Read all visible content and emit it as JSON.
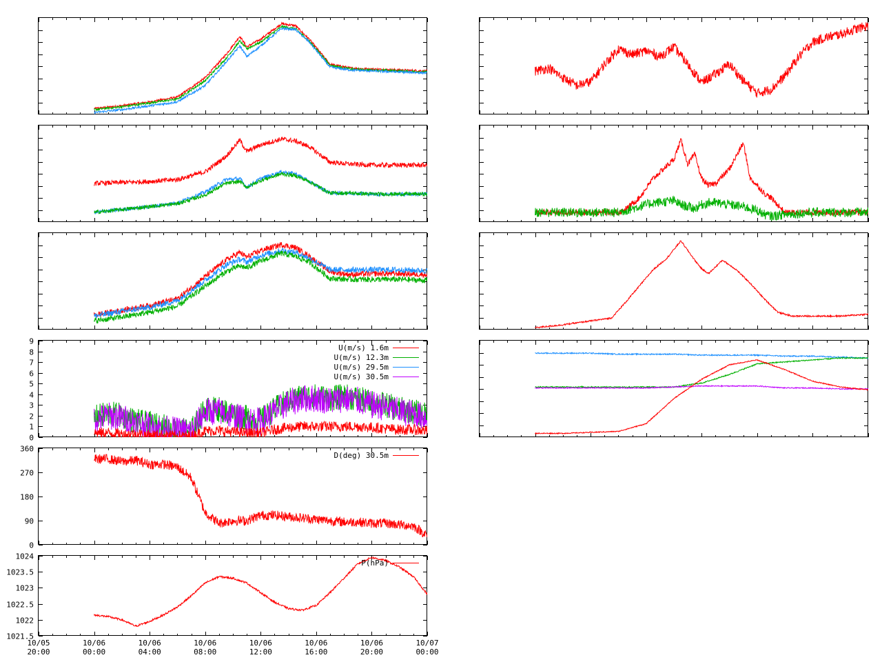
{
  "time_axis": {
    "ticks": [
      {
        "date": "10/05",
        "time": "20:00"
      },
      {
        "date": "10/06",
        "time": "00:00"
      },
      {
        "date": "10/06",
        "time": "04:00"
      },
      {
        "date": "10/06",
        "time": "08:00"
      },
      {
        "date": "10/06",
        "time": "12:00"
      },
      {
        "date": "10/06",
        "time": "16:00"
      },
      {
        "date": "10/06",
        "time": "20:00"
      },
      {
        "date": "10/07",
        "time": "00:00"
      }
    ]
  },
  "colors": {
    "red": "#ff0000",
    "green": "#00b000",
    "blue": "#1e90ff",
    "purple": "#c000ff"
  },
  "chart_data": [
    {
      "type": "line",
      "panel": "left-1",
      "yticks": [],
      "legend": [],
      "x_hours": [
        0,
        2,
        4,
        6,
        8,
        9.5,
        10.5,
        11,
        12,
        13.5,
        14.5,
        15.5,
        17,
        18.5,
        20,
        22,
        24
      ],
      "ylim": [
        0,
        100
      ],
      "series": [
        {
          "color": "red",
          "values": [
            6,
            9,
            13,
            18,
            38,
            62,
            81,
            70,
            78,
            94,
            92,
            78,
            52,
            48,
            47,
            46,
            45
          ],
          "noise": 1.2
        },
        {
          "color": "green",
          "values": [
            5,
            8,
            12,
            16,
            35,
            58,
            76,
            68,
            75,
            91,
            89,
            76,
            51,
            47,
            46,
            45,
            44
          ],
          "noise": 1.2
        },
        {
          "color": "blue",
          "values": [
            2,
            5,
            9,
            13,
            30,
            54,
            71,
            60,
            71,
            89,
            88,
            75,
            49,
            46,
            45,
            44,
            43
          ],
          "noise": 1.2
        }
      ]
    },
    {
      "type": "line",
      "panel": "left-2",
      "yticks": [],
      "legend": [],
      "x_hours": [
        0,
        2,
        4,
        6,
        8,
        9.5,
        10.5,
        11,
        12,
        13.5,
        14.5,
        15.5,
        17,
        18.5,
        20,
        22,
        24
      ],
      "ylim": [
        0,
        100
      ],
      "series": [
        {
          "color": "red",
          "values": [
            40,
            41,
            42,
            44,
            52,
            68,
            85,
            73,
            80,
            86,
            84,
            78,
            62,
            60,
            59,
            59,
            59
          ],
          "noise": 2.5
        },
        {
          "color": "blue",
          "values": [
            10,
            13,
            16,
            20,
            31,
            44,
            45,
            36,
            45,
            52,
            50,
            42,
            30,
            30,
            29,
            29,
            29
          ],
          "noise": 2
        },
        {
          "color": "green",
          "values": [
            10,
            13,
            16,
            19,
            28,
            40,
            42,
            36,
            43,
            50,
            48,
            42,
            30,
            30,
            29,
            29,
            29
          ],
          "noise": 2
        }
      ]
    },
    {
      "type": "line",
      "panel": "left-3",
      "yticks": [],
      "legend": [],
      "x_hours": [
        0,
        2,
        4,
        6,
        8,
        9.5,
        10.5,
        11,
        12,
        13.5,
        14.5,
        15.5,
        17,
        18.5,
        20,
        22,
        24
      ],
      "ylim": [
        0,
        100
      ],
      "series": [
        {
          "color": "red",
          "values": [
            15,
            20,
            25,
            32,
            55,
            72,
            80,
            75,
            82,
            88,
            85,
            76,
            60,
            57,
            58,
            58,
            57
          ],
          "noise": 3
        },
        {
          "color": "blue",
          "values": [
            14,
            19,
            23,
            30,
            51,
            67,
            73,
            70,
            77,
            82,
            80,
            74,
            62,
            62,
            62,
            62,
            61
          ],
          "noise": 3
        },
        {
          "color": "green",
          "values": [
            9,
            13,
            18,
            24,
            45,
            60,
            66,
            64,
            71,
            79,
            76,
            70,
            53,
            52,
            52,
            52,
            51
          ],
          "noise": 3
        }
      ]
    },
    {
      "type": "line",
      "panel": "left-4",
      "ylim": [
        0,
        9
      ],
      "yticks": [
        "0",
        "1",
        "2",
        "3",
        "4",
        "5",
        "6",
        "7",
        "8",
        "9"
      ],
      "legend": [
        {
          "label": "U(m/s)  1.6m",
          "color": "red"
        },
        {
          "label": "U(m/s) 12.3m",
          "color": "green"
        },
        {
          "label": "U(m/s) 29.5m",
          "color": "blue"
        },
        {
          "label": "U(m/s) 30.5m",
          "color": "purple"
        }
      ],
      "x_hours": [
        0,
        1,
        2,
        3,
        4,
        5,
        6,
        7,
        8,
        9,
        10,
        11,
        12,
        13,
        14,
        15,
        16,
        17,
        18,
        19,
        20,
        21,
        22,
        23,
        24
      ],
      "series": [
        {
          "color": "green",
          "values": [
            1.8,
            2.2,
            2.0,
            1.5,
            1.2,
            1.0,
            0.6,
            0.6,
            2.6,
            2.6,
            2.2,
            1.8,
            1.6,
            2.6,
            3.4,
            3.8,
            3.8,
            3.6,
            3.8,
            3.6,
            3.2,
            3.0,
            2.6,
            2.4,
            2.0
          ],
          "noise": 1.2
        },
        {
          "color": "purple",
          "values": [
            1.6,
            2.0,
            1.8,
            1.4,
            1.0,
            0.8,
            0.6,
            0.5,
            2.4,
            2.4,
            2.0,
            1.6,
            1.5,
            2.4,
            3.2,
            3.6,
            3.6,
            3.4,
            3.6,
            3.4,
            3.0,
            2.8,
            2.4,
            2.2,
            1.8
          ],
          "noise": 1.3
        },
        {
          "color": "red",
          "values": [
            0.4,
            0.4,
            0.3,
            0.3,
            0.2,
            0.2,
            0.1,
            0.1,
            0.6,
            0.6,
            0.5,
            0.4,
            0.4,
            0.7,
            0.9,
            1.0,
            1.0,
            1.0,
            1.0,
            1.0,
            0.9,
            0.8,
            0.7,
            0.7,
            0.6
          ],
          "noise": 0.5
        }
      ]
    },
    {
      "type": "line",
      "panel": "left-5",
      "ylim": [
        0,
        360
      ],
      "yticks": [
        "0",
        "90",
        "180",
        "270",
        "360"
      ],
      "legend": [
        {
          "label": "D(deg)  30.5m",
          "color": "red"
        }
      ],
      "x_hours": [
        0,
        1,
        2,
        3,
        4,
        5,
        6,
        7,
        8,
        9,
        10,
        11,
        12,
        13,
        14,
        15,
        16,
        17,
        18,
        19,
        20,
        21,
        22,
        23,
        24
      ],
      "series": [
        {
          "color": "red",
          "values": [
            320,
            320,
            310,
            315,
            300,
            300,
            290,
            250,
            120,
            80,
            90,
            90,
            110,
            110,
            105,
            100,
            95,
            90,
            85,
            85,
            80,
            80,
            75,
            70,
            35
          ],
          "noise": 18
        }
      ]
    },
    {
      "type": "line",
      "panel": "left-6",
      "ylim": [
        1021.5,
        1024
      ],
      "yticks": [
        "1021.5",
        "1022",
        "1022.5",
        "1023",
        "1023.5",
        "1024"
      ],
      "legend": [
        {
          "label": "P(hPa)",
          "color": "red"
        }
      ],
      "x_hours": [
        0,
        1,
        2,
        3,
        4,
        5,
        6,
        7,
        8,
        9,
        10,
        11,
        12,
        13,
        14,
        15,
        16,
        17,
        18,
        19,
        20,
        21,
        22,
        23,
        24
      ],
      "series": [
        {
          "color": "red",
          "values": [
            1022.15,
            1022.1,
            1022.0,
            1021.8,
            1021.95,
            1022.15,
            1022.4,
            1022.75,
            1023.15,
            1023.35,
            1023.3,
            1023.15,
            1022.85,
            1022.55,
            1022.35,
            1022.3,
            1022.45,
            1022.85,
            1023.3,
            1023.75,
            1023.95,
            1023.85,
            1023.65,
            1023.35,
            1022.8
          ],
          "noise": 0.03
        }
      ]
    },
    {
      "type": "line",
      "panel": "right-1",
      "yticks": [],
      "legend": [],
      "x_hours": [
        0,
        1,
        2,
        3,
        4,
        5,
        6,
        7,
        8,
        9,
        10,
        11,
        12,
        13,
        14,
        15,
        16,
        17,
        18,
        19,
        20,
        21,
        22,
        23,
        24
      ],
      "ylim": [
        0,
        100
      ],
      "series": [
        {
          "color": "red",
          "values": [
            45,
            48,
            38,
            30,
            34,
            52,
            68,
            62,
            66,
            60,
            70,
            52,
            33,
            42,
            52,
            35,
            22,
            26,
            40,
            60,
            75,
            80,
            83,
            88,
            92
          ],
          "noise": 5
        }
      ]
    },
    {
      "type": "line",
      "panel": "right-2",
      "yticks": [],
      "legend": [],
      "x_hours": [
        0,
        4,
        5,
        6,
        6.5,
        7.5,
        8.5,
        10,
        10.5,
        11,
        11.5,
        12,
        12.5,
        13,
        14,
        15,
        15.5,
        16,
        16.5,
        17,
        18,
        19,
        20,
        22,
        24
      ],
      "ylim": [
        0,
        100
      ],
      "series": [
        {
          "color": "red",
          "values": [
            10,
            10,
            10,
            10,
            13,
            25,
            45,
            65,
            85,
            60,
            70,
            45,
            38,
            40,
            55,
            82,
            45,
            38,
            30,
            25,
            10,
            10,
            10,
            10,
            10
          ],
          "noise": 3
        },
        {
          "color": "green",
          "values": [
            10,
            10,
            10,
            10,
            12,
            16,
            20,
            22,
            18,
            16,
            14,
            18,
            20,
            20,
            18,
            16,
            14,
            12,
            8,
            6,
            8,
            9,
            10,
            10,
            10
          ],
          "noise": 5
        }
      ]
    },
    {
      "type": "line",
      "panel": "right-3",
      "yticks": [],
      "legend": [],
      "x_hours": [
        0,
        2,
        4,
        5.5,
        6.5,
        7.5,
        8.5,
        9.5,
        10.5,
        11.5,
        12,
        12.5,
        13.5,
        14.5,
        15.5,
        16.5,
        17.5,
        18.5,
        20,
        22,
        24
      ],
      "ylim": [
        0,
        100
      ],
      "series": [
        {
          "color": "red",
          "values": [
            2,
            5,
            9,
            12,
            28,
            45,
            62,
            74,
            92,
            72,
            63,
            58,
            72,
            62,
            48,
            32,
            18,
            14,
            14,
            14,
            16
          ],
          "noise": 0.8
        }
      ]
    },
    {
      "type": "line",
      "panel": "right-4",
      "yticks": [],
      "legend": [],
      "x_hours": [
        0,
        2,
        4,
        6,
        8,
        10,
        12,
        14,
        16,
        18,
        20,
        22,
        24
      ],
      "ylim": [
        0,
        100
      ],
      "series": [
        {
          "color": "blue",
          "values": [
            87,
            87,
            87,
            86,
            86,
            86,
            85,
            85,
            85,
            84,
            84,
            83,
            82
          ],
          "noise": 0.6
        },
        {
          "color": "green",
          "values": [
            52,
            52,
            52,
            52,
            52,
            52,
            56,
            65,
            76,
            78,
            80,
            82,
            82
          ],
          "noise": 0.6
        },
        {
          "color": "purple",
          "values": [
            51,
            51,
            51,
            51,
            51,
            52,
            53,
            53,
            53,
            51,
            51,
            50,
            50
          ],
          "noise": 0.5
        },
        {
          "color": "red",
          "values": [
            4,
            4,
            5,
            6,
            14,
            40,
            60,
            75,
            80,
            70,
            58,
            52,
            49
          ],
          "noise": 0.5
        }
      ]
    }
  ]
}
